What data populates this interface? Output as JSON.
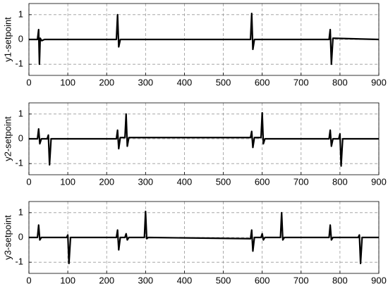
{
  "chart_data": [
    {
      "type": "line",
      "ylabel": "y1-setpoint",
      "x": [
        0,
        22,
        25,
        27,
        29,
        33,
        40,
        225,
        228,
        231,
        235,
        570,
        573,
        576,
        580,
        772,
        775,
        778,
        782,
        900
      ],
      "values": [
        0,
        0,
        0.4,
        -1,
        0.05,
        -0.05,
        0,
        0,
        1,
        -0.3,
        0,
        0,
        1.05,
        -0.4,
        0,
        0,
        0.4,
        -1,
        0.05,
        0
      ],
      "color": "#000000",
      "xlim": [
        0,
        900
      ],
      "ylim": [
        -1.45,
        1.45
      ],
      "xticks": [
        0,
        100,
        200,
        300,
        400,
        500,
        600,
        700,
        800,
        900
      ],
      "yticks": [
        -1,
        0,
        1
      ],
      "grid": true
    },
    {
      "type": "line",
      "ylabel": "y2-setpoint",
      "x": [
        0,
        22,
        25,
        28,
        32,
        47,
        50,
        53,
        57,
        225,
        228,
        231,
        235,
        247,
        250,
        253,
        257,
        570,
        573,
        576,
        580,
        597,
        600,
        603,
        607,
        772,
        775,
        778,
        782,
        797,
        800,
        803,
        807,
        900
      ],
      "values": [
        0,
        0,
        0.4,
        -0.2,
        0,
        0,
        0.15,
        -1.05,
        0,
        0,
        0.35,
        -0.4,
        0.05,
        0.05,
        1,
        -0.3,
        0.05,
        0.05,
        0.3,
        -0.35,
        0.05,
        0.05,
        1.05,
        -0.2,
        0,
        0,
        0.35,
        -0.3,
        0,
        0,
        0.2,
        -1.1,
        0,
        0
      ],
      "color": "#000000",
      "xlim": [
        0,
        900
      ],
      "ylim": [
        -1.45,
        1.45
      ],
      "xticks": [
        0,
        100,
        200,
        300,
        400,
        500,
        600,
        700,
        800,
        900
      ],
      "yticks": [
        -1,
        0,
        1
      ],
      "grid": true
    },
    {
      "type": "line",
      "ylabel": "y3-setpoint",
      "x": [
        0,
        22,
        25,
        28,
        32,
        97,
        100,
        103,
        107,
        225,
        228,
        231,
        235,
        247,
        250,
        253,
        257,
        297,
        300,
        303,
        307,
        570,
        573,
        576,
        580,
        597,
        600,
        603,
        607,
        647,
        650,
        653,
        657,
        772,
        775,
        778,
        782,
        847,
        850,
        853,
        857,
        900
      ],
      "values": [
        0,
        0,
        0.5,
        -0.1,
        0,
        0,
        0.1,
        -1.05,
        0,
        0,
        0.3,
        -0.5,
        0,
        0,
        0.15,
        -0.1,
        0,
        0,
        1.05,
        -0.05,
        0,
        -0.05,
        0.3,
        -0.55,
        0,
        0,
        0.15,
        -0.1,
        0,
        0,
        1,
        -0.1,
        0,
        0,
        0.5,
        -0.1,
        0,
        0,
        0.1,
        -1.05,
        0,
        0
      ],
      "color": "#000000",
      "xlim": [
        0,
        900
      ],
      "ylim": [
        -1.45,
        1.45
      ],
      "xticks": [
        0,
        100,
        200,
        300,
        400,
        500,
        600,
        700,
        800,
        900
      ],
      "yticks": [
        -1,
        0,
        1
      ],
      "grid": true
    }
  ]
}
